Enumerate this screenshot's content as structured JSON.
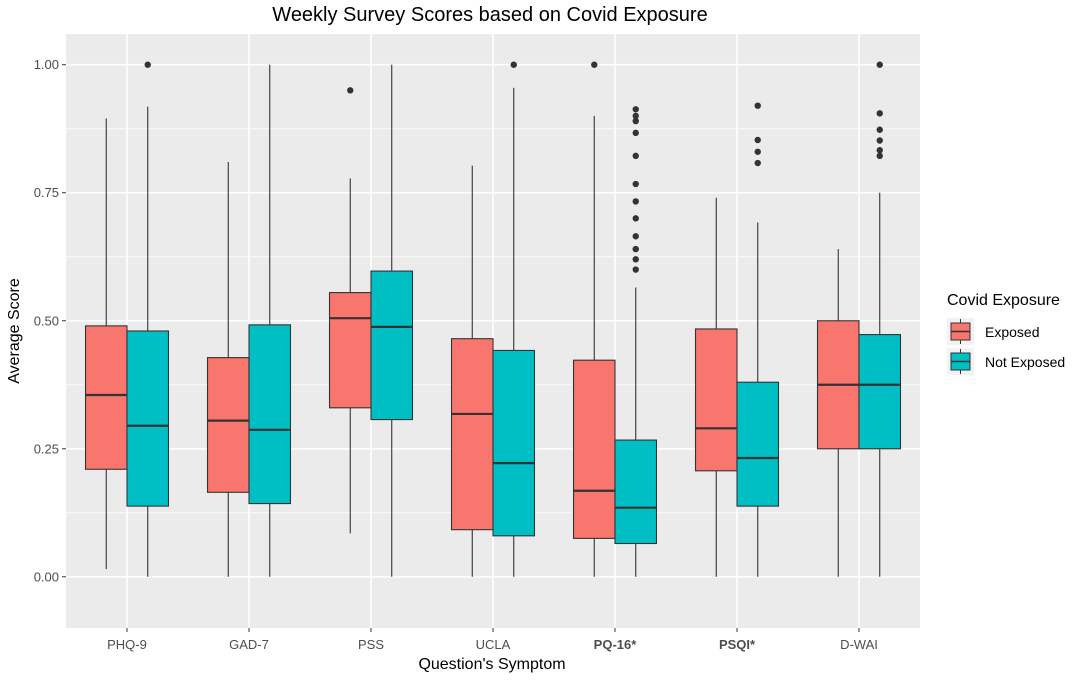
{
  "chart_data": {
    "type": "boxplot",
    "title": "Weekly Survey Scores based on Covid Exposure",
    "xlabel": "Question's Symptom",
    "ylabel": "Average Score",
    "ylim": [
      -0.1,
      1.06
    ],
    "yticks": [
      0.0,
      0.25,
      0.5,
      0.75,
      1.0
    ],
    "ytick_labels": [
      "0.00",
      "0.25",
      "0.50",
      "0.75",
      "1.00"
    ],
    "categories": [
      "PHQ-9",
      "GAD-7",
      "PSS",
      "UCLA",
      "PQ-16*",
      "PSQI*",
      "D-WAI"
    ],
    "bold_categories": [
      "PQ-16*",
      "PSQI*"
    ],
    "legend": {
      "title": "Covid Exposure",
      "placement": "right"
    },
    "series": [
      {
        "name": "Exposed",
        "color": "#F8766D",
        "boxes": [
          {
            "whisker_low": 0.015,
            "q1": 0.21,
            "median": 0.355,
            "q3": 0.49,
            "whisker_high": 0.895,
            "outliers": []
          },
          {
            "whisker_low": 0.0,
            "q1": 0.165,
            "median": 0.305,
            "q3": 0.428,
            "whisker_high": 0.81,
            "outliers": []
          },
          {
            "whisker_low": 0.085,
            "q1": 0.33,
            "median": 0.505,
            "q3": 0.555,
            "whisker_high": 0.778,
            "outliers": [
              0.95
            ]
          },
          {
            "whisker_low": 0.0,
            "q1": 0.092,
            "median": 0.318,
            "q3": 0.465,
            "whisker_high": 0.803,
            "outliers": []
          },
          {
            "whisker_low": 0.0,
            "q1": 0.075,
            "median": 0.168,
            "q3": 0.423,
            "whisker_high": 0.9,
            "outliers": [
              1.0
            ]
          },
          {
            "whisker_low": 0.0,
            "q1": 0.207,
            "median": 0.29,
            "q3": 0.484,
            "whisker_high": 0.74,
            "outliers": []
          },
          {
            "whisker_low": 0.0,
            "q1": 0.25,
            "median": 0.375,
            "q3": 0.5,
            "whisker_high": 0.64,
            "outliers": []
          }
        ]
      },
      {
        "name": "Not Exposed",
        "color": "#00BFC4",
        "boxes": [
          {
            "whisker_low": 0.0,
            "q1": 0.138,
            "median": 0.295,
            "q3": 0.48,
            "whisker_high": 0.918,
            "outliers": [
              1.0
            ]
          },
          {
            "whisker_low": 0.0,
            "q1": 0.143,
            "median": 0.287,
            "q3": 0.492,
            "whisker_high": 1.0,
            "outliers": []
          },
          {
            "whisker_low": 0.0,
            "q1": 0.307,
            "median": 0.488,
            "q3": 0.597,
            "whisker_high": 1.0,
            "outliers": []
          },
          {
            "whisker_low": 0.0,
            "q1": 0.08,
            "median": 0.222,
            "q3": 0.442,
            "whisker_high": 0.955,
            "outliers": [
              1.0
            ]
          },
          {
            "whisker_low": 0.0,
            "q1": 0.065,
            "median": 0.135,
            "q3": 0.267,
            "whisker_high": 0.565,
            "outliers": [
              0.6,
              0.62,
              0.64,
              0.665,
              0.7,
              0.733,
              0.767,
              0.822,
              0.867,
              0.89,
              0.9,
              0.913
            ]
          },
          {
            "whisker_low": 0.0,
            "q1": 0.138,
            "median": 0.232,
            "q3": 0.38,
            "whisker_high": 0.692,
            "outliers": [
              0.808,
              0.83,
              0.853,
              0.92
            ]
          },
          {
            "whisker_low": 0.0,
            "q1": 0.25,
            "median": 0.375,
            "q3": 0.473,
            "whisker_high": 0.75,
            "outliers": [
              0.822,
              0.833,
              0.852,
              0.873,
              0.905,
              1.0
            ]
          }
        ]
      }
    ]
  }
}
